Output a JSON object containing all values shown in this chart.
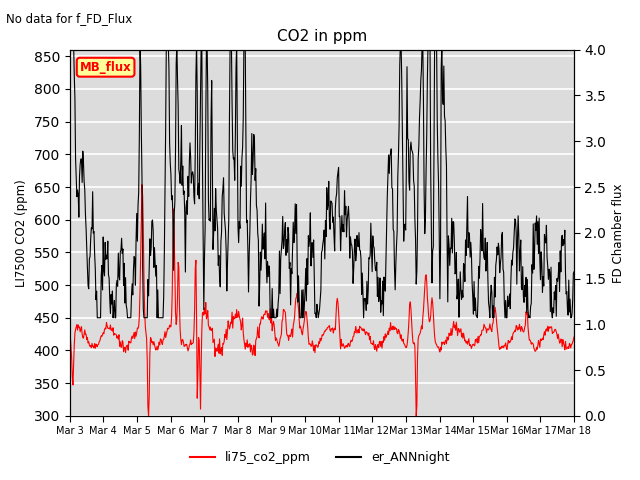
{
  "title": "CO2 in ppm",
  "suptitle": "No data for f_FD_Flux",
  "ylabel_left": "LI7500 CO2 (ppm)",
  "ylabel_right": "FD Chamber flux",
  "ylim_left": [
    300,
    860
  ],
  "ylim_right": [
    0.0,
    4.0
  ],
  "yticks_left": [
    300,
    350,
    400,
    450,
    500,
    550,
    600,
    650,
    700,
    750,
    800,
    850
  ],
  "yticks_right": [
    0.0,
    0.5,
    1.0,
    1.5,
    2.0,
    2.5,
    3.0,
    3.5,
    4.0
  ],
  "xtick_labels": [
    "Mar 3",
    "Mar 4",
    "Mar 5",
    "Mar 6",
    "Mar 7",
    "Mar 8",
    "Mar 9",
    "Mar 10",
    "Mar 11",
    "Mar 12",
    "Mar 13",
    "Mar 14",
    "Mar 15",
    "Mar 16",
    "Mar 17",
    "Mar 18"
  ],
  "line1_color": "#FF0000",
  "line2_color": "#000000",
  "line1_label": "li75_co2_ppm",
  "line2_label": "er_ANNnight",
  "legend_box_color": "#FFFF99",
  "legend_box_edge_color": "#FF0000",
  "legend_box_text": "MB_flux",
  "background_color": "#DCDCDC",
  "grid_color": "#FFFFFF"
}
